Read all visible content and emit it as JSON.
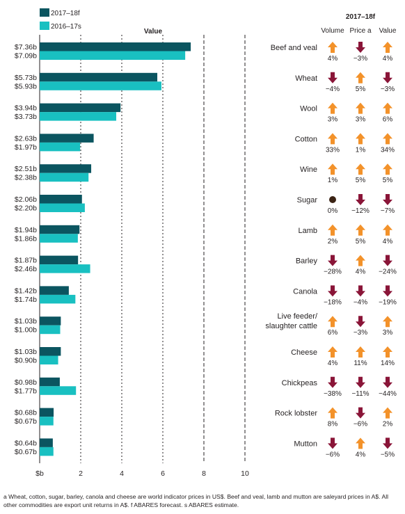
{
  "colors": {
    "series_2017": "#0b5560",
    "series_2016": "#19c0c1",
    "up": "#f3922a",
    "down": "#8a1538",
    "neutral": "#3b2314",
    "text": "#231f20"
  },
  "chart_data": {
    "type": "bar",
    "orientation": "horizontal",
    "title": "Value",
    "xlabel": "",
    "ylabel": "",
    "xlim": [
      0,
      10
    ],
    "x_ticks": [
      "$b",
      "2",
      "4",
      "6",
      "8",
      "10"
    ],
    "grid": "dashed vertical lines at 8 and 10",
    "legend_position": "top-left",
    "categories": [
      "Beef and veal",
      "Wheat",
      "Wool",
      "Cotton",
      "Wine",
      "Sugar",
      "Lamb",
      "Barley",
      "Canola",
      "Live feeder/ slaughter cattle",
      "Cheese",
      "Chickpeas",
      "Rock lobster",
      "Mutton"
    ],
    "series": [
      {
        "name": "2017–18f",
        "values": [
          7.36,
          5.73,
          3.94,
          2.63,
          2.51,
          2.06,
          1.94,
          1.87,
          1.42,
          1.03,
          1.03,
          0.98,
          0.68,
          0.64
        ],
        "labels": [
          "$7.36b",
          "$5.73b",
          "$3.94b",
          "$2.63b",
          "$2.51b",
          "$2.06b",
          "$1.94b",
          "$1.87b",
          "$1.42b",
          "$1.03b",
          "$1.03b",
          "$0.98b",
          "$0.68b",
          "$0.64b"
        ]
      },
      {
        "name": "2016–17s",
        "values": [
          7.09,
          5.93,
          3.73,
          1.97,
          2.38,
          2.2,
          1.86,
          2.46,
          1.74,
          1.0,
          0.9,
          1.77,
          0.67,
          0.67
        ],
        "labels": [
          "$7.09b",
          "$5.93b",
          "$3.73b",
          "$1.97b",
          "$2.38b",
          "$2.20b",
          "$1.86b",
          "$2.46b",
          "$1.74b",
          "$1.00b",
          "$0.90b",
          "$1.77b",
          "$0.67b",
          "$0.67b"
        ]
      }
    ],
    "change_table": {
      "title": "2017–18f",
      "columns": [
        "Volume",
        "Price a",
        "Value"
      ],
      "rows": [
        {
          "volume": "4%",
          "volume_dir": "up",
          "price": "−3%",
          "price_dir": "down",
          "value": "4%",
          "value_dir": "up"
        },
        {
          "volume": "−4%",
          "volume_dir": "down",
          "price": "5%",
          "price_dir": "up",
          "value": "−3%",
          "value_dir": "down"
        },
        {
          "volume": "3%",
          "volume_dir": "up",
          "price": "3%",
          "price_dir": "up",
          "value": "6%",
          "value_dir": "up"
        },
        {
          "volume": "33%",
          "volume_dir": "up",
          "price": "1%",
          "price_dir": "up",
          "value": "34%",
          "value_dir": "up"
        },
        {
          "volume": "1%",
          "volume_dir": "up",
          "price": "5%",
          "price_dir": "up",
          "value": "5%",
          "value_dir": "up"
        },
        {
          "volume": "0%",
          "volume_dir": "neutral",
          "price": "−12%",
          "price_dir": "down",
          "value": "−7%",
          "value_dir": "down"
        },
        {
          "volume": "2%",
          "volume_dir": "up",
          "price": "5%",
          "price_dir": "up",
          "value": "4%",
          "value_dir": "up"
        },
        {
          "volume": "−28%",
          "volume_dir": "down",
          "price": "4%",
          "price_dir": "up",
          "value": "−24%",
          "value_dir": "down"
        },
        {
          "volume": "−18%",
          "volume_dir": "down",
          "price": "−4%",
          "price_dir": "down",
          "value": "−19%",
          "value_dir": "down"
        },
        {
          "volume": "6%",
          "volume_dir": "up",
          "price": "−3%",
          "price_dir": "down",
          "value": "3%",
          "value_dir": "up"
        },
        {
          "volume": "4%",
          "volume_dir": "up",
          "price": "11%",
          "price_dir": "up",
          "value": "14%",
          "value_dir": "up"
        },
        {
          "volume": "−38%",
          "volume_dir": "down",
          "price": "−11%",
          "price_dir": "down",
          "value": "−44%",
          "value_dir": "down"
        },
        {
          "volume": "8%",
          "volume_dir": "up",
          "price": "−6%",
          "price_dir": "down",
          "value": "2%",
          "value_dir": "up"
        },
        {
          "volume": "−6%",
          "volume_dir": "down",
          "price": "4%",
          "price_dir": "up",
          "value": "−5%",
          "value_dir": "down"
        }
      ]
    }
  },
  "footnote": "a Wheat, cotton, sugar, barley, canola and cheese are world indicator prices in US$. Beef and veal, lamb and mutton are saleyard prices in A$. All other commodities are export unit returns in A$. f ABARES forecast. s ABARES estimate."
}
